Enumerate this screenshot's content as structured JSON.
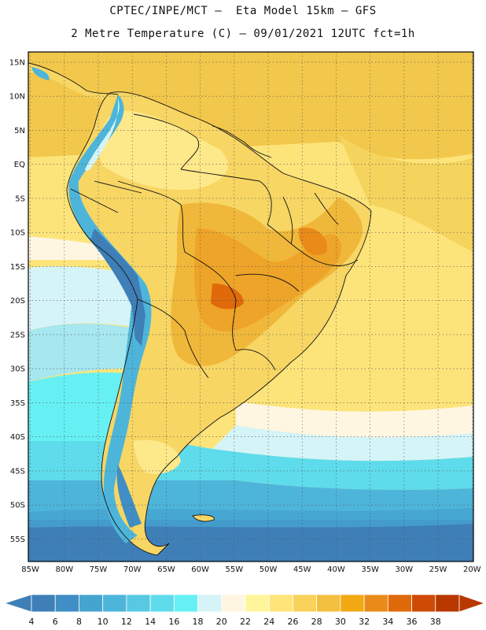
{
  "title": {
    "line1": "CPTEC/INPE/MCT –  Eta Model 15km – GFS",
    "line2": "2 Metre Temperature (C) – 09/01/2021 12UTC fct=1h"
  },
  "map": {
    "region": "South America",
    "lat_labels": [
      "15N",
      "10N",
      "5N",
      "EQ",
      "5S",
      "10S",
      "15S",
      "20S",
      "25S",
      "30S",
      "35S",
      "40S",
      "45S",
      "50S",
      "55S"
    ],
    "lat_values": [
      15,
      10,
      5,
      0,
      -5,
      -10,
      -15,
      -20,
      -25,
      -30,
      -35,
      -40,
      -45,
      -50,
      -55
    ],
    "lon_labels": [
      "85W",
      "80W",
      "75W",
      "70W",
      "65W",
      "60W",
      "55W",
      "50W",
      "45W",
      "40W",
      "35W",
      "30W",
      "25W",
      "20W"
    ],
    "lon_values": [
      -85,
      -80,
      -75,
      -70,
      -65,
      -60,
      -55,
      -50,
      -45,
      -40,
      -35,
      -30,
      -25,
      -20
    ],
    "extent": {
      "lon_min": -85.3,
      "lon_max": -19.8,
      "lat_min": -58.3,
      "lat_max": 16.5
    }
  },
  "colorbar": {
    "unit": "C",
    "ticks": [
      "4",
      "6",
      "8",
      "10",
      "12",
      "14",
      "16",
      "18",
      "20",
      "22",
      "24",
      "26",
      "28",
      "30",
      "32",
      "34",
      "36",
      "38"
    ],
    "colors": [
      "#3f7fb8",
      "#3f8ec5",
      "#46a4d1",
      "#4eb5da",
      "#57c9e2",
      "#5fdceb",
      "#66f0f3",
      "#d5f4f8",
      "#fff6e2",
      "#fff59a",
      "#ffe47a",
      "#f9d25a",
      "#f2bf3e",
      "#f2a914",
      "#ea8a18",
      "#e0690a",
      "#cf4a05",
      "#b83800"
    ]
  }
}
